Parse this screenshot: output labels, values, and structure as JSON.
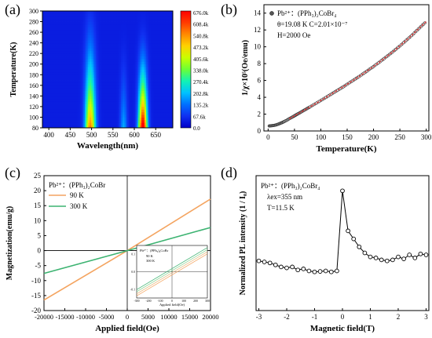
{
  "panels": {
    "a": {
      "tag": "(a)"
    },
    "b": {
      "tag": "(b)"
    },
    "c": {
      "tag": "(c)"
    },
    "d": {
      "tag": "(d)"
    }
  },
  "chart_data": [
    {
      "type": "heatmap",
      "panel": "a",
      "xlabel": "Wavelength(nm)",
      "ylabel": "Temperature(K)",
      "xlim": [
        385,
        690
      ],
      "ylim": [
        80,
        300
      ],
      "xticks": [
        "400",
        "450",
        "500",
        "550",
        "600",
        "650"
      ],
      "yticks": [
        "80",
        "100",
        "120",
        "140",
        "160",
        "180",
        "200",
        "220",
        "240",
        "260",
        "280",
        "300"
      ],
      "colorbar": {
        "min": 0,
        "max": 676,
        "labels": [
          "676.0k",
          "608.4k",
          "540.8k",
          "473.2k",
          "405.6k",
          "338.0k",
          "270.4k",
          "202.8k",
          "135.2k",
          "67.6k",
          "0.0"
        ],
        "colors": [
          "#ff0000",
          "#ff3b00",
          "#ff8a00",
          "#ffd200",
          "#c8ff00",
          "#6bff35",
          "#12f2b4",
          "#00c2ff",
          "#0070ff",
          "#1030f0",
          "#0000c8"
        ]
      },
      "bands": [
        {
          "center": 497,
          "width": 12,
          "peak_low_T": 0.45,
          "peak_high_T": 0.32
        },
        {
          "center": 620,
          "width": 10,
          "peak_low_T": 1.0,
          "peak_high_T": 0.05
        },
        {
          "center": 575,
          "width": 8,
          "peak_low_T": 0.22,
          "peak_high_T": 0.0
        }
      ]
    },
    {
      "type": "scatter",
      "panel": "b",
      "xlabel": "Temperature(K)",
      "ylabel": "1/χ×10⁵(Oe/emu)",
      "xlim": [
        -8,
        305
      ],
      "ylim": [
        0,
        15
      ],
      "xticks": [
        "0",
        "50",
        "100",
        "150",
        "200",
        "250",
        "300"
      ],
      "yticks": [
        "0",
        "2",
        "4",
        "6",
        "8",
        "10",
        "12",
        "14"
      ],
      "legend": {
        "marker_label": "Pb²⁺：(PPh₃)₂CoBr₄",
        "line1": "θ=19.08 K   C=2.01×10⁻⁷",
        "line2": "H=2000 Oe"
      },
      "series": [
        {
          "x": [
            2,
            6,
            10,
            14,
            18,
            22,
            26,
            30,
            35,
            40,
            45,
            50,
            55,
            60,
            65,
            70,
            75,
            80,
            90,
            100,
            110,
            120,
            130,
            140,
            150,
            160,
            170,
            180,
            190,
            200,
            210,
            220,
            230,
            240,
            250,
            260,
            270,
            280,
            290,
            300
          ],
          "y": [
            0.6,
            0.62,
            0.65,
            0.7,
            0.78,
            0.88,
            0.98,
            1.1,
            1.26,
            1.45,
            1.62,
            1.8,
            1.98,
            2.15,
            2.34,
            2.52,
            2.7,
            2.88,
            3.25,
            3.62,
            4.0,
            4.38,
            4.77,
            5.15,
            5.55,
            5.95,
            6.36,
            6.78,
            7.22,
            7.66,
            8.12,
            8.6,
            9.08,
            9.58,
            10.1,
            10.65,
            11.2,
            11.8,
            12.4,
            13.0
          ]
        }
      ],
      "fit_color": "#e03030"
    },
    {
      "type": "line",
      "panel": "c",
      "xlabel": "Applied field(Oe)",
      "ylabel": "Magnetization(emu/g)",
      "xlim": [
        -20000,
        20000
      ],
      "ylim": [
        -20,
        25
      ],
      "xticks": [
        "-20000",
        "-15000",
        "-10000",
        "-5000",
        "0",
        "5000",
        "10000",
        "15000",
        "20000"
      ],
      "yticks": [
        "-20",
        "-15",
        "-10",
        "-5",
        "0",
        "5",
        "10",
        "15",
        "20",
        "25"
      ],
      "legend_title": "Pb²⁺：(PPh₃)₂CoBr",
      "series": [
        {
          "name": "90 K",
          "color": "#f4a460",
          "x": [
            -20000,
            0,
            20000
          ],
          "y": [
            -16.5,
            0,
            17.2
          ]
        },
        {
          "name": "300 K",
          "color": "#3cb371",
          "x": [
            -20000,
            0,
            20000
          ],
          "y": [
            -7.6,
            0,
            7.7
          ]
        }
      ],
      "inset": {
        "xlabel": "Applied field(Oe)",
        "title": "Pb²⁺：(PPh₃)₂CoBr",
        "series_names": [
          "90 K",
          "300 K"
        ],
        "xticks": [
          "-300",
          "-200",
          "-100",
          "0",
          "100",
          "200",
          "300"
        ],
        "yticks": [
          "-0.1",
          "0.0",
          "0.1"
        ]
      }
    },
    {
      "type": "line",
      "panel": "d",
      "xlabel": "Magnetic field(T)",
      "ylabel": "Normalized PL intensity (1 / I₀)",
      "xlim": [
        -3.1,
        3.1
      ],
      "xticks": [
        "-3",
        "-2",
        "-1",
        "0",
        "1",
        "2",
        "3"
      ],
      "legend": {
        "line1": "Pb²⁺：(PPh₃)₂CoBr₄",
        "line2": "λex=355 nm",
        "line3": "T=11.5 K"
      },
      "series": [
        {
          "x": [
            -3.0,
            -2.8,
            -2.6,
            -2.4,
            -2.2,
            -2.0,
            -1.8,
            -1.6,
            -1.4,
            -1.2,
            -1.0,
            -0.8,
            -0.6,
            -0.4,
            -0.2,
            0.0,
            0.2,
            0.4,
            0.6,
            0.8,
            1.0,
            1.2,
            1.4,
            1.6,
            1.8,
            2.0,
            2.2,
            2.4,
            2.6,
            2.8,
            3.0
          ],
          "y": [
            0.3,
            0.29,
            0.28,
            0.26,
            0.24,
            0.23,
            0.24,
            0.21,
            0.22,
            0.2,
            0.19,
            0.195,
            0.2,
            0.19,
            0.2,
            1.0,
            0.6,
            0.52,
            0.44,
            0.38,
            0.34,
            0.33,
            0.31,
            0.3,
            0.31,
            0.34,
            0.32,
            0.36,
            0.33,
            0.37,
            0.36
          ]
        }
      ]
    }
  ]
}
